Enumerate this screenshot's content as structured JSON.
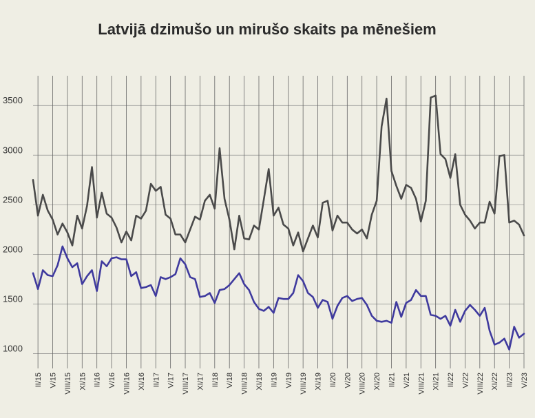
{
  "chart_data": {
    "type": "line",
    "title": "Latvijā dzimušo un mirušo skaits pa mēnešiem",
    "xlabel": "",
    "ylabel": "",
    "ylim": [
      850,
      3800
    ],
    "yticks": [
      1000,
      1500,
      2000,
      2500,
      3000,
      3500
    ],
    "x": [
      "I/15",
      "II/15",
      "III/15",
      "IV/15",
      "V/15",
      "VI/15",
      "VII/15",
      "VIII/15",
      "IX/15",
      "X/15",
      "XI/15",
      "XII/15",
      "I/16",
      "II/16",
      "III/16",
      "IV/16",
      "V/16",
      "VI/16",
      "VII/16",
      "VIII/16",
      "IX/16",
      "X/16",
      "XI/16",
      "XII/16",
      "I/17",
      "II/17",
      "III/17",
      "IV/17",
      "V/17",
      "VI/17",
      "VII/17",
      "VIII/17",
      "IX/17",
      "X/17",
      "XI/17",
      "XII/17",
      "I/18",
      "II/18",
      "III/18",
      "IV/18",
      "V/18",
      "VI/18",
      "VII/18",
      "VIII/18",
      "IX/18",
      "X/18",
      "XI/18",
      "XII/18",
      "I/19",
      "II/19",
      "III/19",
      "IV/19",
      "V/19",
      "VI/19",
      "VII/19",
      "VIII/19",
      "IX/19",
      "X/19",
      "XI/19",
      "XII/19",
      "I/20",
      "II/20",
      "III/20",
      "IV/20",
      "V/20",
      "VI/20",
      "VII/20",
      "VIII/20",
      "IX/20",
      "X/20",
      "XI/20",
      "XII/20",
      "I/21",
      "II/21",
      "III/21",
      "IV/21",
      "V/21",
      "VI/21",
      "VII/21",
      "VIII/21",
      "IX/21",
      "X/21",
      "XI/21",
      "XII/21",
      "I/22",
      "II/22",
      "III/22",
      "IV/22",
      "V/22",
      "VI/22",
      "VII/22",
      "VIII/22",
      "IX/22",
      "X/22",
      "XI/22",
      "XII/22",
      "I/23",
      "II/23",
      "III/23",
      "IV/23",
      "V/23"
    ],
    "xtick_labels": [
      "II/15",
      "V/15",
      "VIII/15",
      "XI/15",
      "II/16",
      "V/16",
      "VIII/16",
      "XI/16",
      "II/17",
      "V/17",
      "VIII/17",
      "XI/17",
      "II/18",
      "V/18",
      "VIII/18",
      "XI/18",
      "II/19",
      "V/19",
      "VIII/19",
      "XI/19",
      "II/20",
      "V/20",
      "VIII/20",
      "XI/20",
      "II/21",
      "V/21",
      "VIII/21",
      "XI/21",
      "II/22",
      "V/22",
      "VIII/22",
      "XI/22",
      "II/23",
      "V/23"
    ],
    "series": [
      {
        "color": "#4a4a4a",
        "values": [
          2750,
          2390,
          2600,
          2440,
          2350,
          2200,
          2310,
          2220,
          2090,
          2390,
          2260,
          2490,
          2880,
          2370,
          2620,
          2410,
          2370,
          2270,
          2120,
          2230,
          2140,
          2390,
          2360,
          2440,
          2710,
          2640,
          2680,
          2400,
          2360,
          2200,
          2200,
          2120,
          2250,
          2380,
          2350,
          2540,
          2600,
          2460,
          3070,
          2560,
          2350,
          2050,
          2390,
          2160,
          2150,
          2290,
          2250,
          2550,
          2860,
          2390,
          2470,
          2300,
          2260,
          2090,
          2220,
          2030,
          2160,
          2290,
          2170,
          2520,
          2540,
          2240,
          2390,
          2320,
          2320,
          2250,
          2210,
          2250,
          2160,
          2400,
          2540,
          3290,
          3570,
          2840,
          2690,
          2560,
          2700,
          2670,
          2560,
          2330,
          2540,
          3580,
          3600,
          3010,
          2960,
          2770,
          3010,
          2500,
          2400,
          2340,
          2260,
          2320,
          2320,
          2530,
          2410,
          2990,
          3000,
          2320,
          2340,
          2300,
          2190
        ]
      },
      {
        "color": "#3f3a9e",
        "values": [
          1810,
          1650,
          1840,
          1790,
          1780,
          1890,
          2080,
          1960,
          1870,
          1910,
          1700,
          1780,
          1840,
          1630,
          1930,
          1880,
          1960,
          1970,
          1950,
          1950,
          1780,
          1820,
          1660,
          1670,
          1690,
          1580,
          1770,
          1750,
          1770,
          1800,
          1960,
          1900,
          1770,
          1750,
          1570,
          1580,
          1610,
          1510,
          1640,
          1650,
          1690,
          1750,
          1810,
          1700,
          1640,
          1520,
          1450,
          1430,
          1470,
          1410,
          1560,
          1550,
          1550,
          1610,
          1790,
          1730,
          1610,
          1570,
          1460,
          1540,
          1520,
          1350,
          1480,
          1560,
          1580,
          1530,
          1550,
          1560,
          1490,
          1380,
          1330,
          1320,
          1330,
          1310,
          1520,
          1370,
          1510,
          1540,
          1640,
          1580,
          1580,
          1390,
          1380,
          1350,
          1380,
          1280,
          1440,
          1320,
          1430,
          1490,
          1440,
          1380,
          1460,
          1230,
          1090,
          1110,
          1150,
          1040,
          1270,
          1160,
          1200
        ]
      }
    ]
  }
}
